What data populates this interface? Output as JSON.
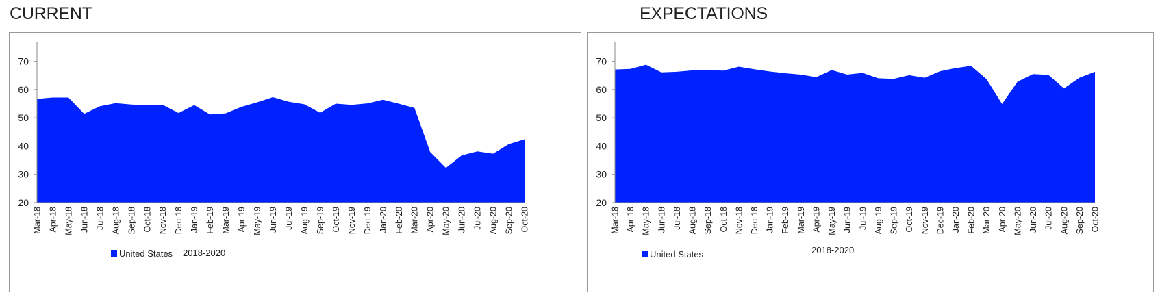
{
  "chart_data": [
    {
      "type": "area",
      "title": "CURRENT",
      "series_name": "United States",
      "note": "2018-2020",
      "color": "#0022ff",
      "ylim": [
        20,
        75
      ],
      "yticks": [
        20,
        30,
        40,
        50,
        60,
        70
      ],
      "categories": [
        "Mar-18",
        "Apr-18",
        "May-18",
        "Jun-18",
        "Jul-18",
        "Aug-18",
        "Sep-18",
        "Oct-18",
        "Nov-18",
        "Dec-18",
        "Jan-19",
        "Feb-19",
        "Mar-19",
        "Apr-19",
        "May-19",
        "Jun-19",
        "Jul-19",
        "Aug-19",
        "Sep-19",
        "Oct-19",
        "Nov-19",
        "Dec-19",
        "Jan-20",
        "Feb-20",
        "Mar-20",
        "Apr-20",
        "May-20",
        "Jun-20",
        "Jul-20",
        "Aug-20",
        "Sep-20",
        "Oct-20"
      ],
      "values": [
        56.7,
        57.2,
        57.2,
        51.4,
        54.1,
        55.2,
        54.7,
        54.4,
        54.6,
        51.7,
        54.5,
        51.2,
        51.6,
        53.9,
        55.5,
        57.3,
        55.7,
        54.8,
        51.8,
        55.0,
        54.6,
        55.1,
        56.4,
        55.0,
        53.5,
        37.9,
        32.3,
        36.7,
        38.1,
        37.3,
        40.7,
        42.4
      ]
    },
    {
      "type": "area",
      "title": "EXPECTATIONS",
      "series_name": "United States",
      "note": "2018-2020",
      "color": "#0022ff",
      "ylim": [
        20,
        75
      ],
      "yticks": [
        20,
        30,
        40,
        50,
        60,
        70
      ],
      "categories": [
        "Mar-18",
        "Apr-18",
        "May-18",
        "Jun-18",
        "Jul-18",
        "Aug-18",
        "Sep-18",
        "Oct-18",
        "Nov-18",
        "Dec-18",
        "Jan-19",
        "Feb-19",
        "Mar-19",
        "Apr-19",
        "May-19",
        "Jun-19",
        "Jul-19",
        "Aug-19",
        "Sep-19",
        "Oct-19",
        "Nov-19",
        "Dec-19",
        "Jan-20",
        "Feb-20",
        "Mar-20",
        "Apr-20",
        "May-20",
        "Jun-20",
        "Jul-20",
        "Aug-20",
        "Sep-20",
        "Oct-20"
      ],
      "values": [
        67.1,
        67.3,
        68.8,
        66.1,
        66.3,
        66.8,
        66.9,
        66.7,
        68.1,
        67.2,
        66.4,
        65.8,
        65.3,
        64.4,
        66.9,
        65.3,
        65.9,
        64.0,
        63.8,
        65.1,
        64.2,
        66.5,
        67.6,
        68.4,
        63.7,
        54.9,
        62.8,
        65.5,
        65.2,
        60.4,
        64.2,
        66.3
      ]
    }
  ]
}
